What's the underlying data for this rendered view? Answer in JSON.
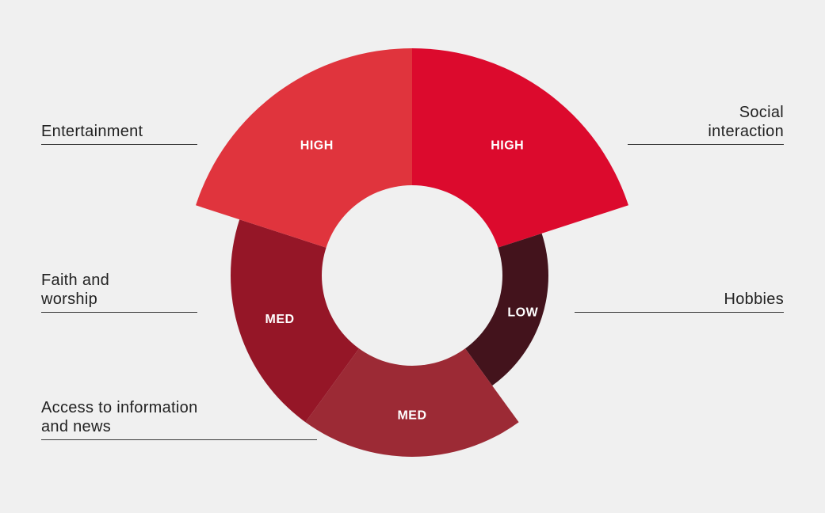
{
  "chart_data": {
    "type": "pie",
    "variant": "polar-area-donut",
    "title": "",
    "scale": {
      "HIGH": 3,
      "MED": 2,
      "LOW": 1
    },
    "segments": [
      {
        "category": "Social\ninteraction",
        "level": "HIGH",
        "value": 3,
        "color": "#dc0a2d"
      },
      {
        "category": "Hobbies",
        "level": "LOW",
        "value": 1,
        "color": "#43131c"
      },
      {
        "category": "Access to information\nand news",
        "level": "MED",
        "value": 2,
        "color": "#9c2a35"
      },
      {
        "category": "Faith and\nworship",
        "level": "MED",
        "value": 2,
        "color": "#951627"
      },
      {
        "category": "Entertainment",
        "level": "HIGH",
        "value": 3,
        "color": "#e0343d"
      }
    ]
  }
}
